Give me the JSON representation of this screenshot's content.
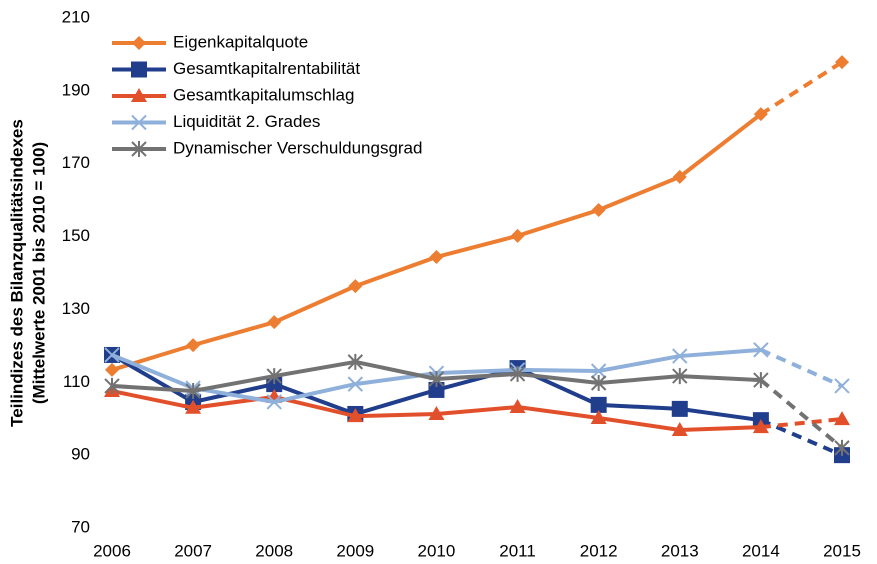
{
  "chart_data": {
    "type": "line",
    "y_label": [
      "Teilindizes des Bilanzqualitätsindexes",
      "(Mittelwerte 2001 bis 2010 = 100)"
    ],
    "categories": [
      "2006",
      "2007",
      "2008",
      "2009",
      "2010",
      "2011",
      "2012",
      "2013",
      "2014",
      "2015"
    ],
    "ylim": [
      70,
      210
    ],
    "yticks": [
      70,
      90,
      110,
      130,
      150,
      170,
      190,
      210
    ],
    "grid": false,
    "legend": "top-left",
    "series": [
      {
        "name": "Eigenkapitalquote",
        "color": "#ED7D31",
        "marker": "diamond",
        "values": [
          113.4,
          120.2,
          126.5,
          136.4,
          144.4,
          150.2,
          157.3,
          166.4,
          183.6,
          197.9
        ]
      },
      {
        "name": "Gesamtkapitalrentabilität",
        "color": "#203E8C",
        "marker": "square",
        "values": [
          117.5,
          104.6,
          109.5,
          101.3,
          107.9,
          113.9,
          103.8,
          102.7,
          99.6,
          90.0
        ]
      },
      {
        "name": "Gesamtkapitalumschlag",
        "color": "#E2502B",
        "marker": "triangle",
        "values": [
          107.6,
          103.0,
          106.0,
          100.7,
          101.3,
          103.2,
          100.2,
          96.9,
          97.7,
          99.9
        ]
      },
      {
        "name": "Liquidität 2. Grades",
        "color": "#8FB0DA",
        "marker": "x",
        "values": [
          117.5,
          108.4,
          104.6,
          109.5,
          112.5,
          113.4,
          113.1,
          117.2,
          118.9,
          109.0
        ]
      },
      {
        "name": "Dynamischer Verschuldungsgrad",
        "color": "#727272",
        "marker": "star",
        "values": [
          109.0,
          107.6,
          111.7,
          115.6,
          110.9,
          112.3,
          109.8,
          111.7,
          110.6,
          92.0
        ]
      }
    ]
  }
}
